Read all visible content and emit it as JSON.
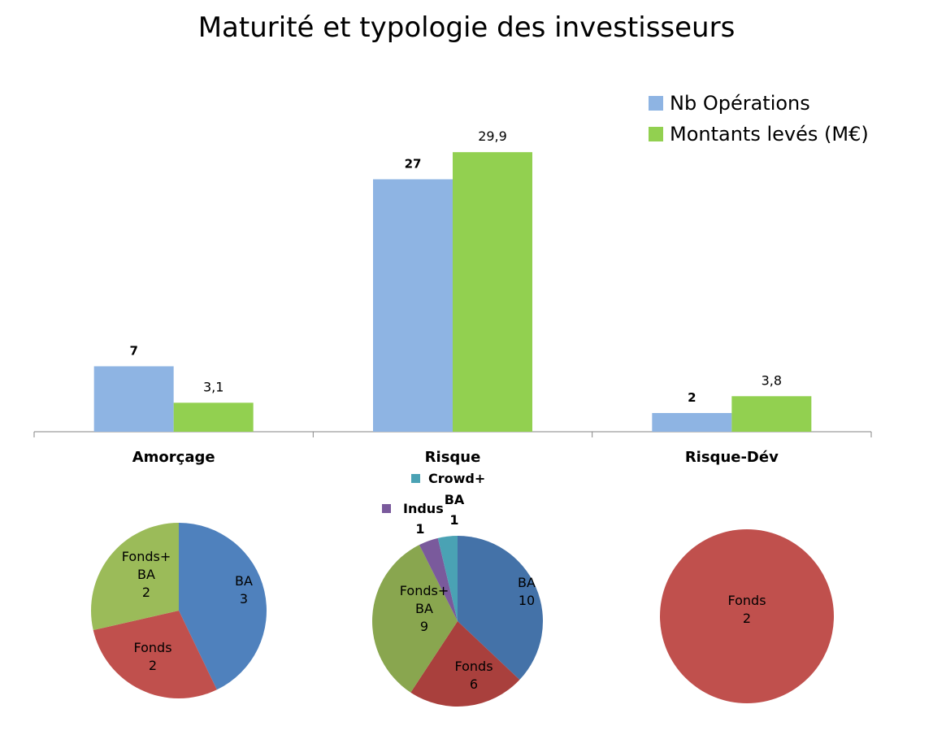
{
  "title": "Maturité et typologie des investisseurs",
  "chart_data": [
    {
      "type": "bar",
      "categories": [
        "Amorçage",
        "Risque",
        "Risque-Dév"
      ],
      "series": [
        {
          "name": "Nb Opérations",
          "values": [
            7,
            27,
            2
          ],
          "labels": [
            "7",
            "27",
            "2"
          ],
          "color": "#8eb4e3"
        },
        {
          "name": "Montants levés (M€)",
          "values": [
            3.1,
            29.9,
            3.8
          ],
          "labels": [
            "3,1",
            "29,9",
            "3,8"
          ],
          "color": "#92d050"
        }
      ],
      "legend_position": "top-right",
      "grid": false
    },
    {
      "type": "pie",
      "category": "Amorçage",
      "slices": [
        {
          "name": "BA",
          "value": 3,
          "color": "#4f81bd"
        },
        {
          "name": "Fonds",
          "value": 2,
          "color": "#c0504d"
        },
        {
          "name": "Fonds+ BA",
          "value": 2,
          "color": "#9bbb59"
        }
      ]
    },
    {
      "type": "pie",
      "category": "Risque",
      "slices": [
        {
          "name": "BA",
          "value": 10,
          "color": "#4472a8"
        },
        {
          "name": "Fonds",
          "value": 6,
          "color": "#a9403d"
        },
        {
          "name": "Fonds+ BA",
          "value": 9,
          "color": "#89a64f"
        },
        {
          "name": "Indus",
          "value": 1,
          "color": "#7a5a9c"
        },
        {
          "name": "Crowd+ BA",
          "value": 1,
          "color": "#4aa2b4"
        }
      ]
    },
    {
      "type": "pie",
      "category": "Risque-Dév",
      "slices": [
        {
          "name": "Fonds",
          "value": 2,
          "color": "#c0504d"
        }
      ]
    }
  ]
}
